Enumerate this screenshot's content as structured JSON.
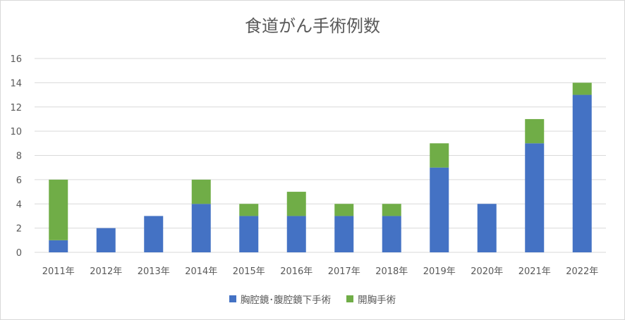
{
  "chart_data": {
    "type": "bar",
    "stacked": true,
    "title": "食道がん手術例数",
    "xlabel": "",
    "ylabel": "",
    "categories": [
      "2011年",
      "2012年",
      "2013年",
      "2014年",
      "2015年",
      "2016年",
      "2017年",
      "2018年",
      "2019年",
      "2020年",
      "2021年",
      "2022年"
    ],
    "series": [
      {
        "name": "胸腔鏡･腹腔鏡下手術",
        "color": "#4472c4",
        "values": [
          1,
          2,
          3,
          4,
          3,
          3,
          3,
          3,
          7,
          4,
          9,
          13
        ]
      },
      {
        "name": "開胸手術",
        "color": "#70ad47",
        "values": [
          5,
          0,
          0,
          2,
          1,
          2,
          1,
          1,
          2,
          0,
          2,
          1
        ]
      }
    ],
    "ylim": [
      0,
      16
    ],
    "yticks": [
      0,
      2,
      4,
      6,
      8,
      10,
      12,
      14,
      16
    ],
    "grid": true,
    "legend_position": "bottom"
  }
}
